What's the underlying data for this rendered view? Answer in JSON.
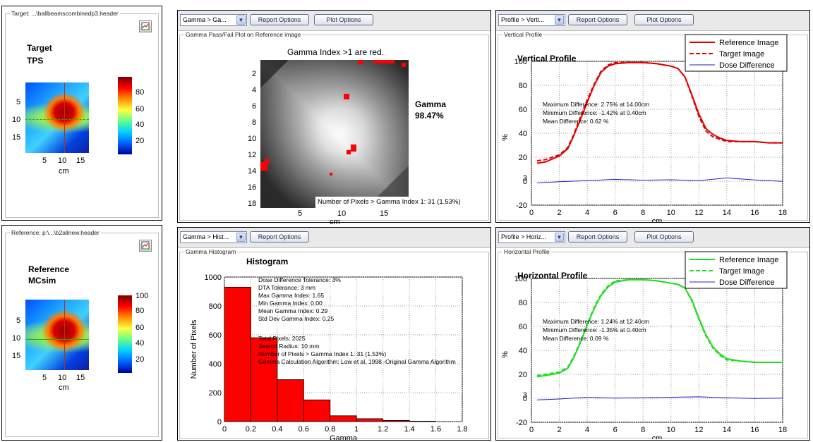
{
  "left_top": {
    "header": "Target: ...\\ballbeamscombinedp3.header",
    "title1": "Target",
    "title2": "TPS",
    "colorbar_ticks": [
      "80",
      "60",
      "40",
      "20"
    ],
    "y_ticks": [
      "5",
      "10",
      "15"
    ],
    "x_ticks": [
      "5",
      "10",
      "15"
    ],
    "x_unit": "cm"
  },
  "left_bottom": {
    "header": "Reference: p:\\...\\b2allnew.header",
    "title1": "Reference",
    "title2": "MCsim",
    "colorbar_ticks": [
      "100",
      "80",
      "60",
      "40",
      "20"
    ],
    "y_ticks": [
      "5",
      "10",
      "15"
    ],
    "x_ticks": [
      "5",
      "10",
      "15"
    ],
    "x_unit": "cm"
  },
  "gamma_panel": {
    "combo": "Gamma > Ga...",
    "report_btn": "Report Options",
    "plot_btn": "Plot Options",
    "group_label": "Gamma Pass/Fail Plot on Reference image",
    "caption": "Gamma Index >1 are red.",
    "gamma_label": "Gamma",
    "gamma_value": "98.47%",
    "pixels_note": "Number of Pixels > Gamma Index 1: 31 (1.53%)",
    "y_ticks": [
      "2",
      "4",
      "6",
      "8",
      "10",
      "12",
      "14",
      "16",
      "18"
    ],
    "x_ticks": [
      "5",
      "10",
      "15"
    ],
    "x_unit": "cm"
  },
  "histogram_panel": {
    "combo": "Gamma > Hist...",
    "report_btn": "Report Options",
    "group_label": "Gamma Histogram",
    "title": "Histogram",
    "info": [
      "Dose Difference Tolerance: 3%",
      "DTA Tolerance: 3 mm",
      "Max Gamma Index: 1.65",
      "Min Gamma Index: 0.00",
      "Mean Gamma Index: 0.29",
      "Std Dev Gamma Index: 0.25",
      "Total Pixels: 2025",
      "Search Radius: 10 mm",
      "Number of Pixels > Gamma Index 1: 31 (1.53%)",
      "Gamma Calculation Algorithm: Low et al, 1998 -Original Gamma Algorithm"
    ]
  },
  "vertical_panel": {
    "combo": "Profile > Verti...",
    "report_btn": "Report Options",
    "plot_btn": "Plot Options",
    "group_label": "Vertical Profile",
    "stats": [
      "Maximum Difference: 2.75% at 14.00cm",
      "Minimum Difference: -1.42% at 0.40cm",
      "Mean Difference: 0.62 %"
    ]
  },
  "horizontal_panel": {
    "combo": "Profile > Horiz...",
    "report_btn": "Report Options",
    "plot_btn": "Plot Options",
    "group_label": "Horizontal Profile",
    "stats": [
      "Maximum Difference: 1.24% at 12.40cm",
      "Minimum Difference: -1.35% at 0.40cm",
      "Mean Difference: 0.09 %"
    ]
  },
  "chart_data": [
    {
      "type": "bar",
      "title": "Histogram",
      "xlabel": "Gamma",
      "ylabel": "Number of Pixels",
      "x_bin_edges": [
        0,
        0.2,
        0.4,
        0.6,
        0.8,
        1.0,
        1.2,
        1.4,
        1.6
      ],
      "values": [
        930,
        580,
        290,
        150,
        40,
        20,
        8,
        3
      ],
      "xlim": [
        0,
        1.8
      ],
      "ylim": [
        0,
        1000
      ],
      "x_ticks": [
        "0",
        "0.2",
        "0.4",
        "0.6",
        "0.8",
        "1",
        "1.2",
        "1.4",
        "1.6",
        "1.8"
      ],
      "y_ticks": [
        "0",
        "200",
        "400",
        "600",
        "800",
        "1000"
      ],
      "grid": true,
      "color": "#ff0000"
    },
    {
      "type": "line",
      "title": "Vertical Profile",
      "xlabel": "cm",
      "ylabel": "%",
      "xlim": [
        0,
        18
      ],
      "ylim": [
        -20,
        100
      ],
      "x_ticks": [
        "0",
        "2",
        "4",
        "6",
        "8",
        "10",
        "12",
        "14",
        "16",
        "18"
      ],
      "y_ticks": [
        "-20",
        "0",
        "3",
        "20",
        "40",
        "60",
        "80",
        "100"
      ],
      "legend_placement": "top-right",
      "grid": true,
      "series": [
        {
          "name": "Reference Image",
          "style": "solid",
          "color": "#e00000",
          "x": [
            0.4,
            1,
            2,
            2.6,
            3,
            3.5,
            4,
            4.5,
            5,
            5.5,
            6,
            7,
            8,
            9,
            10,
            10.5,
            11,
            11.5,
            12,
            12.5,
            13,
            13.5,
            14,
            15,
            16,
            17,
            18
          ],
          "y": [
            15,
            16,
            21,
            27,
            37,
            51,
            66,
            80,
            91,
            96,
            98,
            99,
            99,
            98,
            96,
            94,
            87,
            72,
            56,
            44,
            39,
            36,
            34,
            33,
            33,
            32,
            32
          ]
        },
        {
          "name": "Target Image",
          "style": "dashed",
          "color": "#e00000",
          "x": [
            0.4,
            1,
            2,
            2.6,
            3,
            3.5,
            4,
            4.5,
            5,
            5.5,
            6,
            7,
            8,
            9,
            10,
            10.5,
            11,
            11.5,
            12,
            12.5,
            13,
            13.5,
            14,
            15,
            16,
            17,
            18
          ],
          "y": [
            17,
            18,
            22,
            28,
            38,
            53,
            68,
            81,
            92,
            97,
            99,
            99,
            99,
            98,
            96,
            94,
            87,
            71,
            54,
            42,
            37,
            35,
            33,
            33,
            33,
            32,
            32
          ]
        },
        {
          "name": "Dose Difference",
          "style": "solid",
          "color": "#2222cc",
          "x": [
            0.4,
            2,
            4,
            6,
            8,
            10,
            12,
            14,
            16,
            18
          ],
          "y": [
            -1.4,
            -0.5,
            0.5,
            1.5,
            0.8,
            1.2,
            0.5,
            2.7,
            1.0,
            -0.2
          ]
        }
      ]
    },
    {
      "type": "line",
      "title": "Horizontal Profile",
      "xlabel": "cm",
      "ylabel": "%",
      "xlim": [
        0,
        18
      ],
      "ylim": [
        -20,
        100
      ],
      "x_ticks": [
        "0",
        "2",
        "4",
        "6",
        "8",
        "10",
        "12",
        "14",
        "16",
        "18"
      ],
      "y_ticks": [
        "-20",
        "0",
        "3",
        "20",
        "40",
        "60",
        "80",
        "100"
      ],
      "legend_placement": "top-right",
      "grid": true,
      "series": [
        {
          "name": "Reference Image",
          "style": "solid",
          "color": "#22dd22",
          "x": [
            0.4,
            1,
            2,
            2.6,
            3,
            3.5,
            4,
            4.5,
            5,
            5.5,
            6,
            7,
            8,
            9,
            10,
            10.5,
            11,
            11.5,
            12,
            12.5,
            13,
            13.5,
            14,
            15,
            16,
            17,
            18
          ],
          "y": [
            18,
            19,
            21,
            25,
            33,
            46,
            61,
            75,
            86,
            93,
            97,
            99,
            99,
            98,
            96,
            95,
            92,
            82,
            67,
            53,
            43,
            37,
            33,
            31,
            30,
            30,
            30
          ]
        },
        {
          "name": "Target Image",
          "style": "dashed",
          "color": "#22dd22",
          "x": [
            0.4,
            1,
            2,
            2.6,
            3,
            3.5,
            4,
            4.5,
            5,
            5.5,
            6,
            7,
            8,
            9,
            10,
            10.5,
            11,
            11.5,
            12,
            12.5,
            13,
            13.5,
            14,
            15,
            16,
            17,
            18
          ],
          "y": [
            19,
            20,
            22,
            26,
            34,
            47,
            62,
            76,
            87,
            94,
            98,
            99,
            99,
            98,
            96,
            95,
            92,
            81,
            66,
            52,
            42,
            36,
            32,
            31,
            30,
            30,
            30
          ]
        },
        {
          "name": "Dose Difference",
          "style": "solid",
          "color": "#2222cc",
          "x": [
            0.4,
            2,
            4,
            6,
            8,
            10,
            12,
            14,
            16,
            18
          ],
          "y": [
            -1.35,
            -0.6,
            0.8,
            0.2,
            0.5,
            0.9,
            1.24,
            0.4,
            -0.2,
            0.1
          ]
        }
      ]
    }
  ]
}
